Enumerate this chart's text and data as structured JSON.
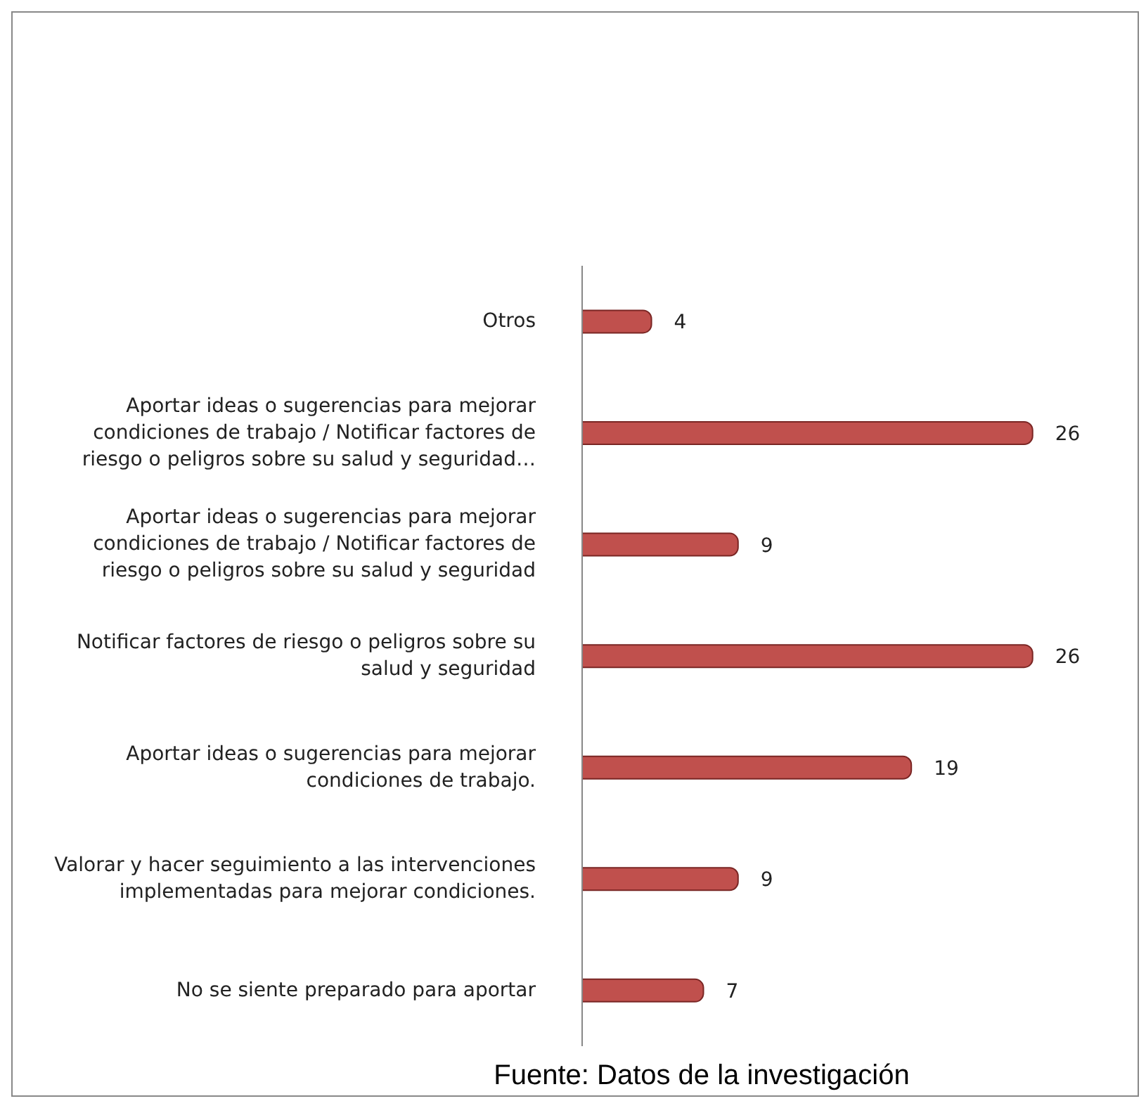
{
  "chart_data": {
    "type": "bar",
    "orientation": "horizontal",
    "categories": [
      "Otros",
      "Aportar ideas o sugerencias para mejorar condiciones de trabajo / Notificar factores de riesgo o peligros sobre su salud y seguridad…",
      "Aportar ideas o sugerencias para mejorar condiciones de trabajo / Notificar factores de riesgo o peligros sobre su salud y seguridad",
      "Notificar factores de riesgo o peligros sobre su salud y seguridad",
      "Aportar ideas o sugerencias para mejorar condiciones de trabajo.",
      "Valorar y hacer seguimiento a las intervenciones implementadas para mejorar condiciones.",
      "No se siente preparado para aportar"
    ],
    "values": [
      4,
      26,
      9,
      26,
      19,
      9,
      7
    ],
    "color": "#c0504d",
    "data_labels": true,
    "grid": false,
    "legend": false,
    "annotations": [
      "Fuente: Datos de la investigación"
    ]
  }
}
